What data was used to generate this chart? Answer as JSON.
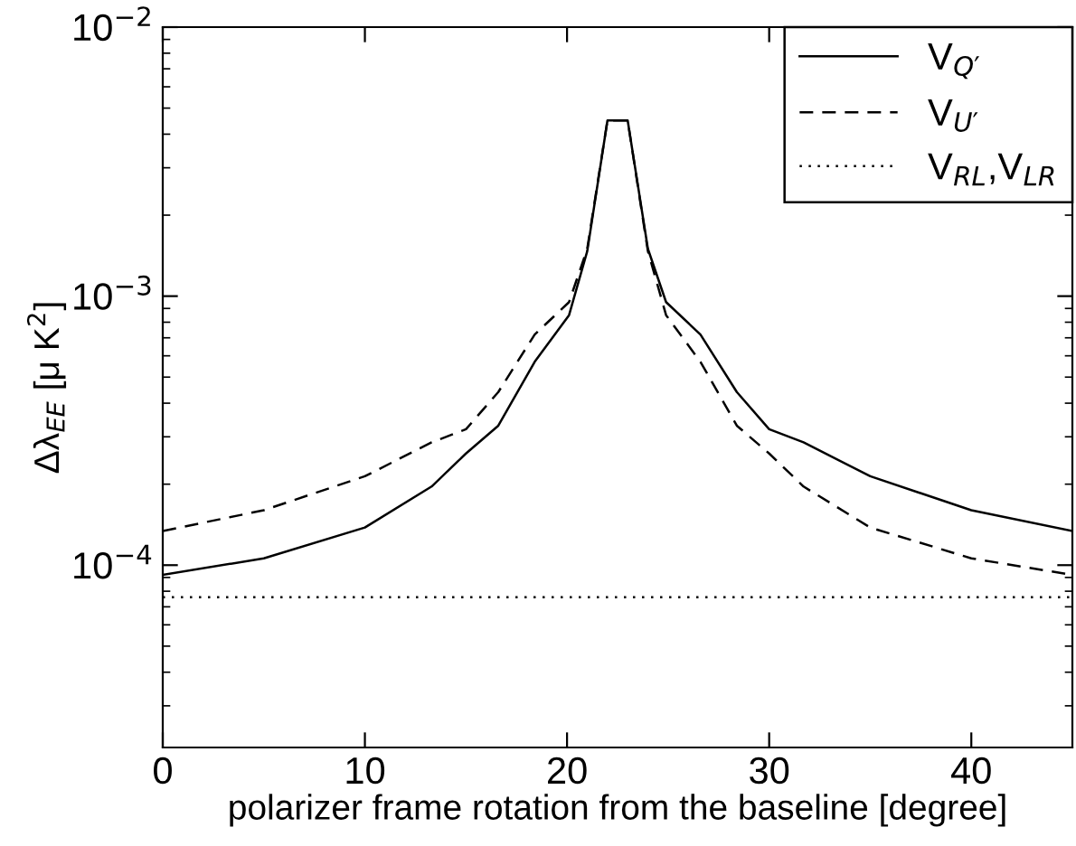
{
  "chart_data": {
    "type": "line",
    "xlabel": "polarizer frame rotation from the baseline [degree]",
    "ylabel": "Δλ$_{EE}$ [μ K$^{2}$]",
    "x": [
      0,
      5,
      10,
      13.3,
      15,
      16.6,
      18.4,
      20.1,
      21,
      22,
      23,
      24,
      24.9,
      26.6,
      28.4,
      30,
      31.7,
      35,
      40,
      45
    ],
    "series": [
      {
        "name": "V$_{Q′}$",
        "color": "#000000",
        "line_style": "solid",
        "values": [
          9.2e-05,
          0.000106,
          0.000138,
          0.000196,
          0.00026,
          0.00033,
          0.00057,
          0.00085,
          0.00147,
          0.0045,
          0.0045,
          0.0015,
          0.00095,
          0.00072,
          0.00044,
          0.00032,
          0.000286,
          0.000214,
          0.00016,
          0.000134
        ]
      },
      {
        "name": "V$_{U′}$",
        "color": "#000000",
        "line_style": "dashed",
        "values": [
          0.000134,
          0.00016,
          0.000214,
          0.000286,
          0.00032,
          0.00044,
          0.00072,
          0.00095,
          0.0015,
          0.0045,
          0.0045,
          0.00147,
          0.00085,
          0.00057,
          0.00033,
          0.00026,
          0.000196,
          0.000138,
          0.000106,
          9.2e-05
        ]
      },
      {
        "name": "V$_{RL}$,V$_{LR}$",
        "color": "#000000",
        "line_style": "dotted",
        "values": [
          7.6e-05,
          7.6e-05,
          7.6e-05,
          7.6e-05,
          7.6e-05,
          7.6e-05,
          7.6e-05,
          7.6e-05,
          7.6e-05,
          7.6e-05,
          7.6e-05,
          7.6e-05,
          7.6e-05,
          7.6e-05,
          7.6e-05,
          7.6e-05,
          7.6e-05,
          7.6e-05,
          7.6e-05,
          7.6e-05
        ]
      }
    ],
    "log": "y",
    "xlim": [
      0,
      45
    ],
    "xticks": [
      0,
      10,
      20,
      30,
      40
    ],
    "ylim": [
      2.1e-05,
      0.01
    ],
    "yticks": [
      {
        "value": 0.0001,
        "label": "10$^{−4}$"
      },
      {
        "value": 0.001,
        "label": "10$^{−3}$"
      },
      {
        "value": 0.01,
        "label": "10$^{−2}$"
      }
    ],
    "grid": false,
    "legend": "top right",
    "marker": "none"
  }
}
